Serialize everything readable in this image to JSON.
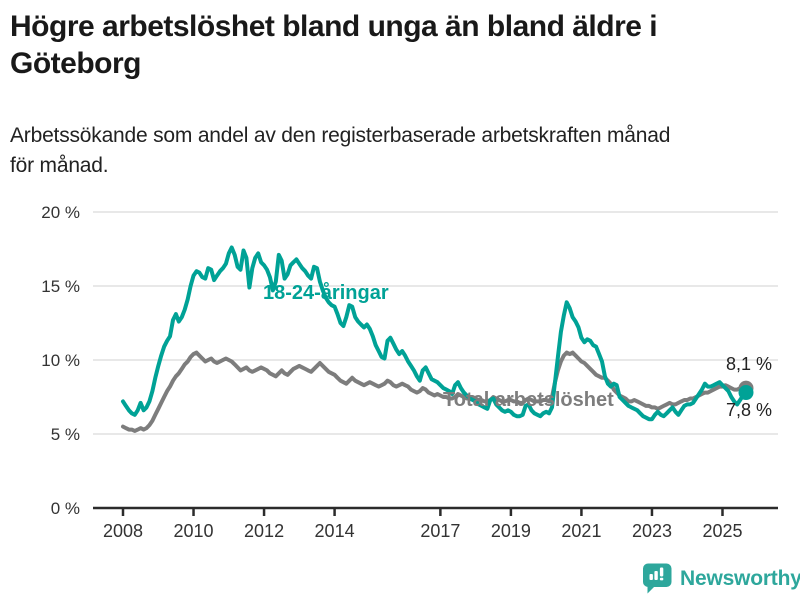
{
  "header": {
    "title_line1": "Högre arbetslöshet bland unga än bland äldre i",
    "title_line2": "Göteborg",
    "subtitle_line1": "Arbetssökande som andel av den registerbaserade arbetskraften månad",
    "subtitle_line2": "för månad."
  },
  "chart_data": {
    "type": "line",
    "unit": "%",
    "frequency": "monthly",
    "x_start": "2008-01",
    "x_end": "2025-09",
    "ylim": [
      0,
      20
    ],
    "grid": "horizontal",
    "y_ticks": [
      {
        "value": 0,
        "label": "0 %"
      },
      {
        "value": 5,
        "label": "5 %"
      },
      {
        "value": 10,
        "label": "10 %"
      },
      {
        "value": 15,
        "label": "15 %"
      },
      {
        "value": 20,
        "label": "20 %"
      }
    ],
    "x_ticks": [
      {
        "year": 2008,
        "label": "2008"
      },
      {
        "year": 2010,
        "label": "2010"
      },
      {
        "year": 2012,
        "label": "2012"
      },
      {
        "year": 2014,
        "label": "2014"
      },
      {
        "year": 2017,
        "label": "2017"
      },
      {
        "year": 2019,
        "label": "2019"
      },
      {
        "year": 2021,
        "label": "2021"
      },
      {
        "year": 2023,
        "label": "2023"
      },
      {
        "year": 2025,
        "label": "2025"
      }
    ],
    "series": [
      {
        "name": "Total arbetslöshet",
        "color": "#7d7d7d",
        "end_label": "8,1 %",
        "end_value": 8.1,
        "values": [
          5.5,
          5.4,
          5.3,
          5.3,
          5.2,
          5.3,
          5.4,
          5.3,
          5.4,
          5.6,
          5.9,
          6.3,
          6.7,
          7.1,
          7.5,
          7.9,
          8.2,
          8.6,
          8.9,
          9.1,
          9.4,
          9.7,
          9.9,
          10.2,
          10.4,
          10.5,
          10.3,
          10.1,
          9.9,
          10.0,
          10.1,
          9.9,
          9.8,
          9.9,
          10.0,
          10.1,
          10.0,
          9.9,
          9.7,
          9.5,
          9.3,
          9.4,
          9.5,
          9.3,
          9.2,
          9.3,
          9.4,
          9.5,
          9.4,
          9.3,
          9.1,
          9.0,
          8.9,
          9.1,
          9.3,
          9.1,
          9.0,
          9.2,
          9.4,
          9.5,
          9.6,
          9.5,
          9.4,
          9.3,
          9.2,
          9.4,
          9.6,
          9.8,
          9.6,
          9.4,
          9.2,
          9.1,
          9.0,
          8.8,
          8.6,
          8.5,
          8.4,
          8.6,
          8.8,
          8.6,
          8.5,
          8.4,
          8.3,
          8.4,
          8.5,
          8.4,
          8.3,
          8.2,
          8.3,
          8.4,
          8.6,
          8.5,
          8.3,
          8.2,
          8.3,
          8.4,
          8.3,
          8.2,
          8.0,
          7.9,
          7.8,
          7.9,
          8.1,
          8.0,
          7.8,
          7.7,
          7.6,
          7.7,
          7.6,
          7.5,
          7.5,
          7.4,
          7.4,
          7.5,
          7.7,
          7.6,
          7.5,
          7.4,
          7.4,
          7.5,
          7.4,
          7.3,
          7.3,
          7.2,
          7.2,
          7.3,
          7.5,
          7.4,
          7.3,
          7.2,
          7.2,
          7.3,
          7.3,
          7.2,
          7.2,
          7.1,
          7.1,
          7.3,
          7.4,
          7.3,
          7.2,
          7.2,
          7.2,
          7.3,
          7.3,
          7.2,
          7.5,
          8.5,
          9.3,
          9.9,
          10.3,
          10.5,
          10.4,
          10.5,
          10.3,
          10.1,
          9.9,
          9.8,
          9.6,
          9.4,
          9.2,
          9.0,
          8.9,
          8.8,
          8.8,
          8.6,
          8.4,
          8.0,
          7.8,
          7.6,
          7.5,
          7.4,
          7.2,
          7.2,
          7.3,
          7.2,
          7.1,
          7.0,
          6.9,
          6.9,
          6.8,
          6.8,
          6.7,
          6.8,
          6.9,
          7.0,
          7.1,
          7.0,
          7.0,
          7.1,
          7.2,
          7.3,
          7.3,
          7.4,
          7.4,
          7.5,
          7.6,
          7.7,
          7.8,
          7.8,
          7.9,
          8.0,
          8.1,
          8.2,
          8.2,
          8.3,
          8.2,
          8.1,
          8.0,
          8.0,
          8.1,
          8.1,
          8.1
        ]
      },
      {
        "name": "18-24-åringar",
        "color": "#00a296",
        "end_label": "7,8 %",
        "end_value": 7.8,
        "values": [
          7.2,
          6.9,
          6.6,
          6.4,
          6.3,
          6.6,
          7.1,
          6.6,
          6.8,
          7.2,
          7.9,
          8.8,
          9.6,
          10.3,
          10.9,
          11.3,
          11.6,
          12.7,
          13.1,
          12.6,
          12.9,
          13.4,
          14.1,
          15.0,
          15.7,
          16.0,
          15.9,
          15.6,
          15.5,
          16.2,
          16.1,
          15.4,
          15.7,
          16.0,
          16.2,
          16.5,
          17.2,
          17.6,
          17.1,
          16.3,
          16.1,
          17.4,
          16.9,
          14.9,
          16.2,
          16.9,
          17.2,
          16.6,
          16.4,
          16.1,
          15.6,
          14.7,
          15.3,
          17.1,
          16.7,
          15.5,
          15.8,
          16.4,
          16.6,
          16.8,
          16.5,
          16.2,
          16.0,
          15.7,
          15.5,
          16.3,
          16.2,
          15.3,
          14.7,
          14.2,
          13.9,
          13.7,
          13.6,
          13.1,
          12.5,
          12.3,
          12.9,
          13.7,
          13.6,
          12.9,
          12.6,
          12.4,
          12.2,
          12.4,
          12.1,
          11.6,
          11.0,
          10.6,
          10.2,
          10.1,
          11.3,
          11.5,
          11.1,
          10.7,
          10.4,
          10.6,
          10.3,
          9.9,
          9.6,
          9.3,
          8.9,
          8.6,
          9.3,
          9.5,
          9.1,
          8.7,
          8.6,
          8.5,
          8.3,
          8.1,
          8.0,
          7.9,
          7.7,
          8.3,
          8.5,
          8.1,
          7.8,
          7.6,
          7.4,
          7.3,
          7.2,
          7.0,
          6.9,
          6.8,
          6.7,
          7.3,
          7.4,
          7.0,
          6.8,
          6.6,
          6.5,
          6.6,
          6.5,
          6.3,
          6.2,
          6.2,
          6.3,
          6.9,
          7.0,
          6.6,
          6.4,
          6.3,
          6.2,
          6.4,
          6.5,
          6.4,
          6.8,
          8.5,
          10.2,
          11.9,
          13.0,
          13.9,
          13.5,
          12.9,
          12.6,
          12.2,
          11.5,
          11.2,
          11.4,
          11.3,
          11.0,
          10.9,
          10.4,
          9.9,
          8.9,
          8.4,
          8.2,
          8.4,
          8.3,
          7.5,
          7.3,
          7.1,
          6.9,
          6.8,
          6.7,
          6.6,
          6.4,
          6.2,
          6.1,
          6.0,
          6.0,
          6.3,
          6.5,
          6.3,
          6.2,
          6.4,
          6.6,
          6.8,
          6.5,
          6.3,
          6.6,
          6.9,
          7.0,
          7.0,
          7.1,
          7.4,
          7.7,
          8.0,
          8.4,
          8.2,
          8.2,
          8.3,
          8.4,
          8.5,
          8.3,
          8.1,
          7.9,
          7.5,
          7.2,
          7.0,
          7.3,
          7.6,
          7.8
        ]
      }
    ],
    "colors": {
      "young": "#00a296",
      "total": "#7d7d7d",
      "grid": "#d9d9d9",
      "axis": "#2b2b2b",
      "tick_text": "#333333"
    }
  },
  "footer": {
    "brand": "Newsworthy",
    "brand_color": "#2ea79c",
    "logo_icon": "speech-bubble-bar-chart"
  }
}
